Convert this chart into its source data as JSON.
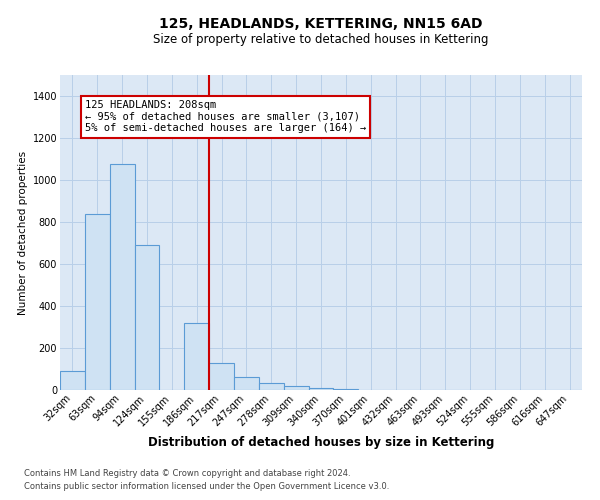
{
  "title": "125, HEADLANDS, KETTERING, NN15 6AD",
  "subtitle": "Size of property relative to detached houses in Kettering",
  "xlabel": "Distribution of detached houses by size in Kettering",
  "ylabel": "Number of detached properties",
  "footnote1": "Contains HM Land Registry data © Crown copyright and database right 2024.",
  "footnote2": "Contains public sector information licensed under the Open Government Licence v3.0.",
  "bar_color": "#cfe2f3",
  "bar_edge_color": "#5b9bd5",
  "grid_color": "#b8cfe8",
  "background_color": "#dce8f5",
  "vline_color": "#cc0000",
  "vline_x_index": 6,
  "annotation_text_line1": "125 HEADLANDS: 208sqm",
  "annotation_text_line2": "← 95% of detached houses are smaller (3,107)",
  "annotation_text_line3": "5% of semi-detached houses are larger (164) →",
  "annotation_box_color": "#ffffff",
  "annotation_border_color": "#cc0000",
  "ylim": [
    0,
    1500
  ],
  "yticks": [
    0,
    200,
    400,
    600,
    800,
    1000,
    1200,
    1400
  ],
  "categories": [
    "32sqm",
    "63sqm",
    "94sqm",
    "124sqm",
    "155sqm",
    "186sqm",
    "217sqm",
    "247sqm",
    "278sqm",
    "309sqm",
    "340sqm",
    "370sqm",
    "401sqm",
    "432sqm",
    "463sqm",
    "493sqm",
    "524sqm",
    "555sqm",
    "586sqm",
    "616sqm",
    "647sqm"
  ],
  "values": [
    90,
    840,
    1075,
    690,
    0,
    320,
    130,
    60,
    35,
    20,
    8,
    5,
    0,
    0,
    0,
    0,
    0,
    0,
    0,
    0,
    0
  ],
  "title_fontsize": 10,
  "subtitle_fontsize": 8.5,
  "ylabel_fontsize": 7.5,
  "xlabel_fontsize": 8.5,
  "tick_fontsize": 7,
  "annotation_fontsize": 7.5,
  "footnote_fontsize": 6
}
